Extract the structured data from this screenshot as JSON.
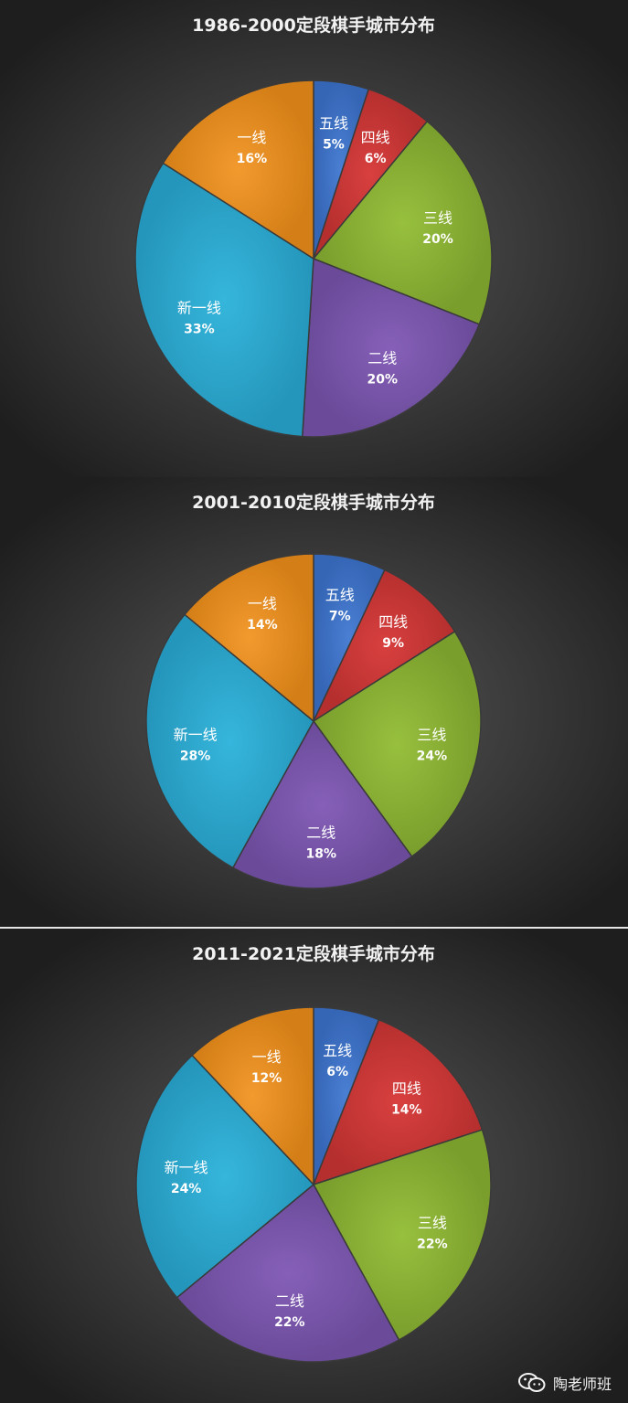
{
  "chart_data": [
    {
      "type": "pie",
      "title": "1986-2000定段棋手城市分布",
      "slices": [
        {
          "label": "五线",
          "value": 5,
          "display": "5%",
          "color": "#4a7fd3"
        },
        {
          "label": "四线",
          "value": 6,
          "display": "6%",
          "color": "#d8403f"
        },
        {
          "label": "三线",
          "value": 20,
          "display": "20%",
          "color": "#98c03e"
        },
        {
          "label": "二线",
          "value": 20,
          "display": "20%",
          "color": "#8660b8"
        },
        {
          "label": "新一线",
          "value": 33,
          "display": "33%",
          "color": "#36b6dc"
        },
        {
          "label": "一线",
          "value": 16,
          "display": "16%",
          "color": "#f29a2e"
        }
      ]
    },
    {
      "type": "pie",
      "title": "2001-2010定段棋手城市分布",
      "slices": [
        {
          "label": "五线",
          "value": 7,
          "display": "7%",
          "color": "#4a7fd3"
        },
        {
          "label": "四线",
          "value": 9,
          "display": "9%",
          "color": "#d8403f"
        },
        {
          "label": "三线",
          "value": 24,
          "display": "24%",
          "color": "#98c03e"
        },
        {
          "label": "二线",
          "value": 18,
          "display": "18%",
          "color": "#8660b8"
        },
        {
          "label": "新一线",
          "value": 28,
          "display": "28%",
          "color": "#36b6dc"
        },
        {
          "label": "一线",
          "value": 14,
          "display": "14%",
          "color": "#f29a2e"
        }
      ]
    },
    {
      "type": "pie",
      "title": "2011-2021定段棋手城市分布",
      "slices": [
        {
          "label": "五线",
          "value": 6,
          "display": "6%",
          "color": "#4a7fd3"
        },
        {
          "label": "四线",
          "value": 14,
          "display": "14%",
          "color": "#d8403f"
        },
        {
          "label": "三线",
          "value": 22,
          "display": "22%",
          "color": "#98c03e"
        },
        {
          "label": "二线",
          "value": 22,
          "display": "22%",
          "color": "#8660b8"
        },
        {
          "label": "新一线",
          "value": 24,
          "display": "24%",
          "color": "#36b6dc"
        },
        {
          "label": "一线",
          "value": 12,
          "display": "12%",
          "color": "#f29a2e"
        }
      ]
    }
  ],
  "watermark": {
    "text": "陶老师班",
    "icon": "wechat-icon"
  }
}
